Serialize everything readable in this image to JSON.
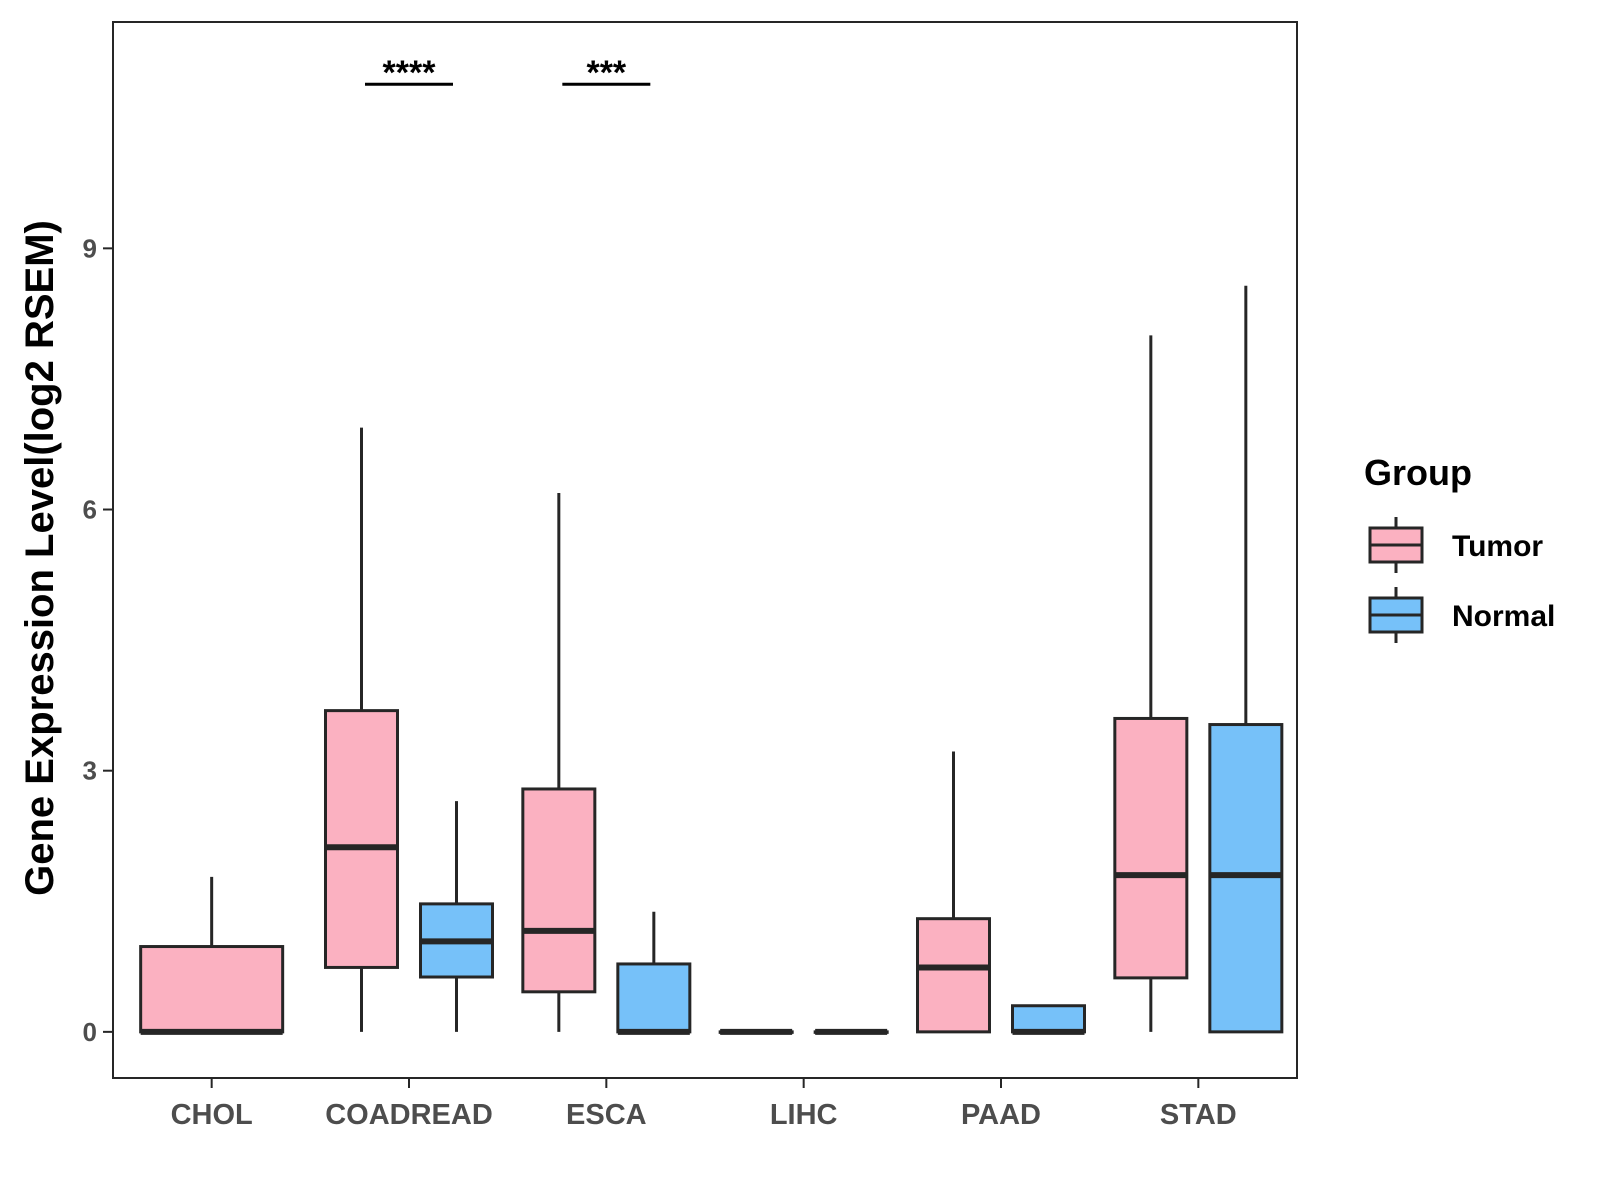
{
  "chart_data": {
    "type": "boxplot",
    "title": "",
    "xlabel": "",
    "ylabel": "Gene Expression Level(log2 RSEM)",
    "ylim": [
      -0.53,
      11.6
    ],
    "yticks": [
      0,
      3,
      6,
      9
    ],
    "categories": [
      "CHOL",
      "COADREAD",
      "ESCA",
      "LIHC",
      "PAAD",
      "STAD"
    ],
    "series": [
      {
        "name": "Tumor",
        "color": "#FBB1C1",
        "boxes": [
          {
            "category": "CHOL",
            "whisker_low": 0,
            "q1": 0,
            "median": 0,
            "q3": 0.98,
            "whisker_high": 1.78
          },
          {
            "category": "COADREAD",
            "whisker_low": 0,
            "q1": 0.74,
            "median": 2.12,
            "q3": 3.69,
            "whisker_high": 6.94
          },
          {
            "category": "ESCA",
            "whisker_low": 0,
            "q1": 0.46,
            "median": 1.16,
            "q3": 2.79,
            "whisker_high": 6.19
          },
          {
            "category": "LIHC",
            "whisker_low": 0,
            "q1": 0,
            "median": 0,
            "q3": 0,
            "whisker_high": 0
          },
          {
            "category": "PAAD",
            "whisker_low": 0,
            "q1": 0,
            "median": 0.74,
            "q3": 1.3,
            "whisker_high": 3.22
          },
          {
            "category": "STAD",
            "whisker_low": 0,
            "q1": 0.62,
            "median": 1.8,
            "q3": 3.6,
            "whisker_high": 8.0
          }
        ]
      },
      {
        "name": "Normal",
        "color": "#76C1F9",
        "boxes": [
          {
            "category": "CHOL",
            "absent": true
          },
          {
            "category": "COADREAD",
            "whisker_low": 0,
            "q1": 0.63,
            "median": 1.04,
            "q3": 1.47,
            "whisker_high": 2.65
          },
          {
            "category": "ESCA",
            "whisker_low": 0,
            "q1": 0,
            "median": 0,
            "q3": 0.78,
            "whisker_high": 1.38
          },
          {
            "category": "LIHC",
            "whisker_low": 0,
            "q1": 0,
            "median": 0,
            "q3": 0,
            "whisker_high": 0
          },
          {
            "category": "PAAD",
            "whisker_low": 0,
            "q1": 0,
            "median": 0,
            "q3": 0.3,
            "whisker_high": 0.3
          },
          {
            "category": "STAD",
            "whisker_low": 0,
            "q1": 0,
            "median": 1.8,
            "q3": 3.53,
            "whisker_high": 8.57
          }
        ]
      }
    ],
    "annotations": [
      {
        "category": "COADREAD",
        "text": "****",
        "y": 11.0
      },
      {
        "category": "ESCA",
        "text": "***",
        "y": 11.0
      }
    ],
    "legend": {
      "title": "Group",
      "position": "right",
      "entries": [
        "Tumor",
        "Normal"
      ]
    }
  },
  "colors": {
    "tumor": "#FBB1C1",
    "normal": "#76C1F9",
    "stroke": "#262626",
    "tick_text": "#4d4d4d"
  }
}
